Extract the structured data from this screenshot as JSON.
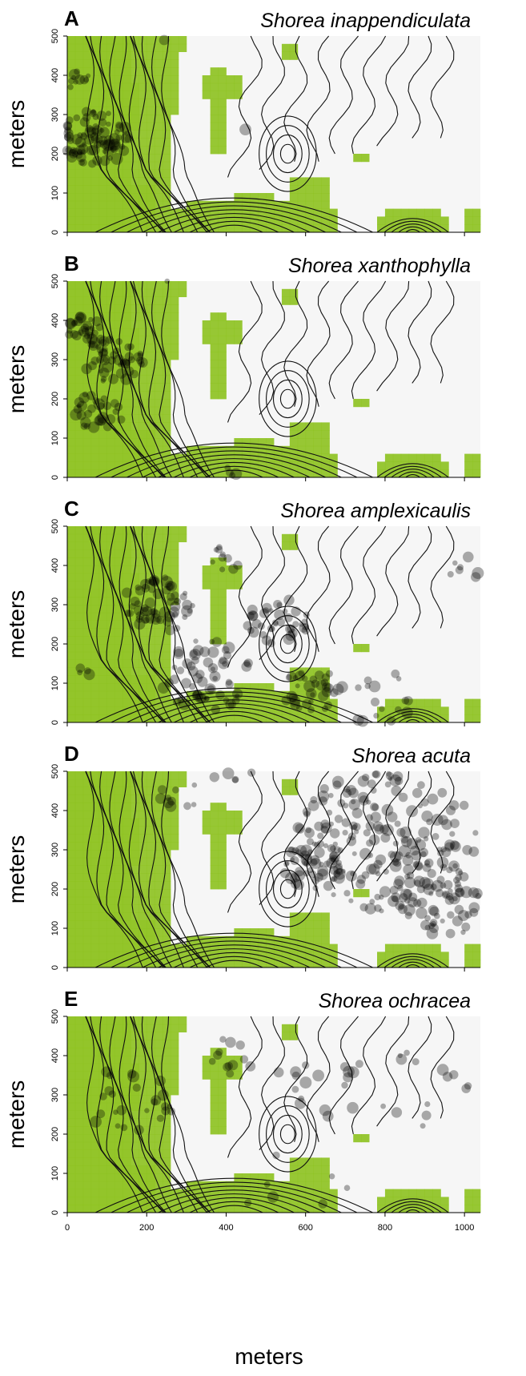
{
  "figure": {
    "xlabel": "meters"
  },
  "chart_data": [
    {
      "type": "scatter",
      "panel": "A",
      "title": "Shorea inappendiculata",
      "ylabel": "meters",
      "xlim": [
        0,
        1040
      ],
      "ylim": [
        0,
        500
      ],
      "xticks": [
        0,
        200,
        400,
        600,
        800,
        1000
      ],
      "yticks": [
        0,
        100,
        200,
        300,
        400,
        500
      ],
      "show_x_tick_labels": false,
      "background": "topographic contour map with green habitat cells",
      "colors": {
        "habitat": "#8dc21f",
        "habitat_dark": "#4e7a10",
        "points": "#000000"
      },
      "clusters": [
        {
          "x": 70,
          "y": 240,
          "spread": 70,
          "count": 90
        },
        {
          "x": 25,
          "y": 390,
          "spread": 25,
          "count": 12
        },
        {
          "x": 240,
          "y": 490,
          "spread": 10,
          "count": 1
        },
        {
          "x": 460,
          "y": 255,
          "spread": 15,
          "count": 1
        }
      ]
    },
    {
      "type": "scatter",
      "panel": "B",
      "title": "Shorea xanthophylla",
      "ylabel": "meters",
      "xlim": [
        0,
        1040
      ],
      "ylim": [
        0,
        500
      ],
      "xticks": [
        0,
        200,
        400,
        600,
        800,
        1000
      ],
      "yticks": [
        0,
        100,
        200,
        300,
        400,
        500
      ],
      "show_x_tick_labels": false,
      "background": "topographic contour map with green habitat cells",
      "colors": {
        "habitat": "#8dc21f",
        "habitat_dark": "#4e7a10",
        "points": "#000000"
      },
      "clusters": [
        {
          "x": 40,
          "y": 380,
          "spread": 35,
          "count": 30
        },
        {
          "x": 120,
          "y": 300,
          "spread": 60,
          "count": 50
        },
        {
          "x": 80,
          "y": 170,
          "spread": 50,
          "count": 30
        },
        {
          "x": 250,
          "y": 495,
          "spread": 8,
          "count": 1
        },
        {
          "x": 410,
          "y": 10,
          "spread": 20,
          "count": 4
        }
      ]
    },
    {
      "type": "scatter",
      "panel": "C",
      "title": "Shorea amplexicaulis",
      "ylabel": "meters",
      "xlim": [
        0,
        1040
      ],
      "ylim": [
        0,
        500
      ],
      "xticks": [
        0,
        200,
        400,
        600,
        800,
        1000
      ],
      "yticks": [
        0,
        100,
        200,
        300,
        400,
        500
      ],
      "show_x_tick_labels": false,
      "background": "topographic contour map with green habitat cells",
      "colors": {
        "habitat": "#8dc21f",
        "habitat_dark": "#4e7a10",
        "points": "#000000"
      },
      "clusters": [
        {
          "x": 230,
          "y": 300,
          "spread": 70,
          "count": 60
        },
        {
          "x": 350,
          "y": 120,
          "spread": 90,
          "count": 60
        },
        {
          "x": 530,
          "y": 260,
          "spread": 60,
          "count": 40
        },
        {
          "x": 620,
          "y": 80,
          "spread": 60,
          "count": 35
        },
        {
          "x": 800,
          "y": 60,
          "spread": 80,
          "count": 20
        },
        {
          "x": 1000,
          "y": 400,
          "spread": 40,
          "count": 8
        },
        {
          "x": 50,
          "y": 140,
          "spread": 20,
          "count": 4
        },
        {
          "x": 400,
          "y": 420,
          "spread": 40,
          "count": 10
        }
      ]
    },
    {
      "type": "scatter",
      "panel": "D",
      "title": "Shorea acuta",
      "ylabel": "meters",
      "xlim": [
        0,
        1040
      ],
      "ylim": [
        0,
        500
      ],
      "xticks": [
        0,
        200,
        400,
        600,
        800,
        1000
      ],
      "yticks": [
        0,
        100,
        200,
        300,
        400,
        500
      ],
      "show_x_tick_labels": false,
      "background": "topographic contour map with green habitat cells",
      "colors": {
        "habitat": "#8dc21f",
        "habitat_dark": "#4e7a10",
        "points": "#000000"
      },
      "clusters": [
        {
          "x": 800,
          "y": 320,
          "spread": 180,
          "count": 220
        },
        {
          "x": 950,
          "y": 160,
          "spread": 80,
          "count": 50
        },
        {
          "x": 620,
          "y": 260,
          "spread": 60,
          "count": 40
        },
        {
          "x": 280,
          "y": 440,
          "spread": 40,
          "count": 10
        },
        {
          "x": 420,
          "y": 490,
          "spread": 40,
          "count": 6
        }
      ]
    },
    {
      "type": "scatter",
      "panel": "E",
      "title": "Shorea ochracea",
      "ylabel": "meters",
      "xlim": [
        0,
        1040
      ],
      "ylim": [
        0,
        500
      ],
      "xticks": [
        0,
        200,
        400,
        600,
        800,
        1000
      ],
      "yticks": [
        0,
        100,
        200,
        300,
        400,
        500
      ],
      "show_x_tick_labels": true,
      "xtick_labels": [
        "0",
        "200",
        "400",
        "600",
        "800",
        "1000"
      ],
      "ytick_labels": [
        "0",
        "100",
        "200",
        "300",
        "400",
        "500"
      ],
      "background": "topographic contour map with green habitat cells",
      "colors": {
        "habitat": "#8dc21f",
        "habitat_dark": "#4e7a10",
        "points": "#000000"
      },
      "clusters": [
        {
          "x": 150,
          "y": 280,
          "spread": 90,
          "count": 25
        },
        {
          "x": 420,
          "y": 400,
          "spread": 50,
          "count": 12
        },
        {
          "x": 640,
          "y": 330,
          "spread": 90,
          "count": 18
        },
        {
          "x": 900,
          "y": 320,
          "spread": 100,
          "count": 14
        },
        {
          "x": 560,
          "y": 30,
          "spread": 120,
          "count": 10
        }
      ]
    }
  ]
}
